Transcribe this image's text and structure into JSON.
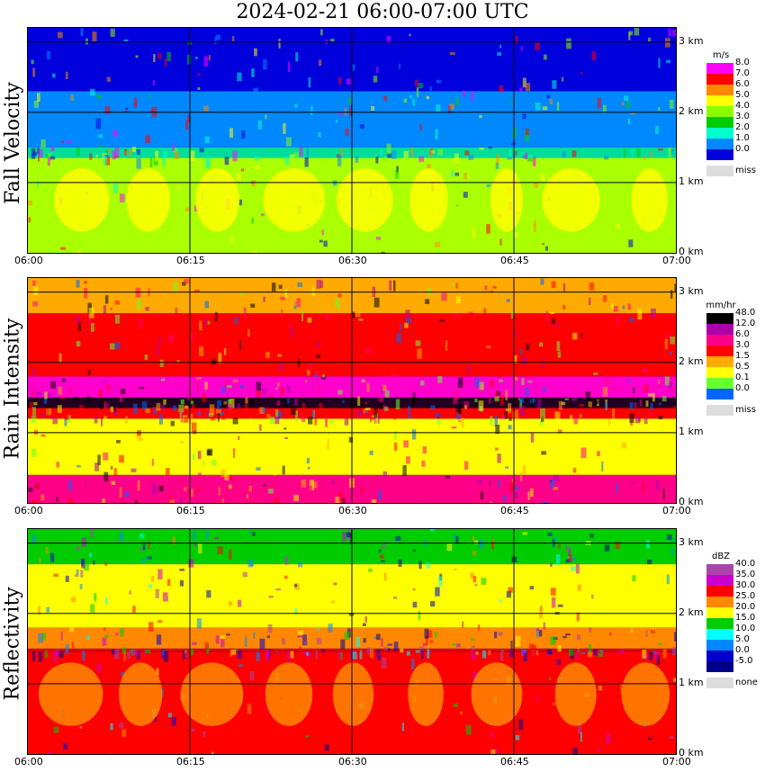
{
  "title": "2024-02-21   06:00-07:00 UTC",
  "time_labels": [
    "06:00",
    "06:15",
    "06:30",
    "06:45",
    "07:00"
  ],
  "height_labels": [
    "3 km",
    "2 km",
    "1 km",
    "0 km"
  ],
  "chart_data": [
    {
      "type": "heatmap",
      "name": "Fall Velocity",
      "ylabel": "Fall Velocity",
      "x_range": [
        "06:00",
        "07:00"
      ],
      "y_range_km": [
        0,
        3.2
      ],
      "legend_unit": "m/s",
      "legend": [
        {
          "label": "8.0",
          "color": "#ff00ff"
        },
        {
          "label": "7.0",
          "color": "#ff0000"
        },
        {
          "label": "6.0",
          "color": "#ff8800"
        },
        {
          "label": "5.0",
          "color": "#ffff00"
        },
        {
          "label": "4.0",
          "color": "#88ff00"
        },
        {
          "label": "3.0",
          "color": "#00cc00"
        },
        {
          "label": "2.0",
          "color": "#00ffcc"
        },
        {
          "label": "1.0",
          "color": "#0088ff"
        },
        {
          "label": "0.0",
          "color": "#0000dd"
        },
        {
          "label": "miss",
          "color": "#dddddd"
        }
      ],
      "layers": [
        {
          "from_km": 0.0,
          "to_km": 1.35,
          "color": "#aaff00"
        },
        {
          "from_km": 1.35,
          "to_km": 1.5,
          "color": "#00dd99"
        },
        {
          "from_km": 1.5,
          "to_km": 2.3,
          "color": "#0088ff"
        },
        {
          "from_km": 2.3,
          "to_km": 3.2,
          "color": "#0000dd"
        }
      ],
      "highlights": [
        {
          "from_km": 0.3,
          "to_km": 1.2,
          "color": "#ffff00"
        }
      ]
    },
    {
      "type": "heatmap",
      "name": "Rain Intensity",
      "ylabel": "Rain Intensity",
      "x_range": [
        "06:00",
        "07:00"
      ],
      "y_range_km": [
        0,
        3.2
      ],
      "legend_unit": "mm/hr",
      "legend": [
        {
          "label": "48.0",
          "color": "#000000"
        },
        {
          "label": "12.0",
          "color": "#aa00aa"
        },
        {
          "label": "6.0",
          "color": "#ff0088"
        },
        {
          "label": "3.0",
          "color": "#ff0000"
        },
        {
          "label": "1.5",
          "color": "#ffaa00"
        },
        {
          "label": "0.5",
          "color": "#ffff00"
        },
        {
          "label": "0.1",
          "color": "#66ff33"
        },
        {
          "label": "0.0",
          "color": "#0066ff"
        },
        {
          "label": "miss",
          "color": "#dddddd"
        }
      ],
      "layers": [
        {
          "from_km": 0.0,
          "to_km": 0.4,
          "color": "#ff0088"
        },
        {
          "from_km": 0.4,
          "to_km": 1.2,
          "color": "#ffff00"
        },
        {
          "from_km": 1.2,
          "to_km": 1.35,
          "color": "#ff0000"
        },
        {
          "from_km": 1.35,
          "to_km": 1.5,
          "color": "#220022"
        },
        {
          "from_km": 1.5,
          "to_km": 1.8,
          "color": "#ff00cc"
        },
        {
          "from_km": 1.8,
          "to_km": 2.7,
          "color": "#ff0000"
        },
        {
          "from_km": 2.7,
          "to_km": 3.2,
          "color": "#ffaa00"
        }
      ],
      "highlights": []
    },
    {
      "type": "heatmap",
      "name": "Reflectivity",
      "ylabel": "Reflectivity",
      "x_range": [
        "06:00",
        "07:00"
      ],
      "y_range_km": [
        0,
        3.2
      ],
      "legend_unit": "dBZ",
      "legend": [
        {
          "label": "40.0",
          "color": "#aa44aa"
        },
        {
          "label": "35.0",
          "color": "#cc00cc"
        },
        {
          "label": "30.0",
          "color": "#ff0000"
        },
        {
          "label": "25.0",
          "color": "#ff8800"
        },
        {
          "label": "20.0",
          "color": "#ffff00"
        },
        {
          "label": "15.0",
          "color": "#00cc00"
        },
        {
          "label": "10.0",
          "color": "#00ffff"
        },
        {
          "label": "5.0",
          "color": "#0088ff"
        },
        {
          "label": "0.0",
          "color": "#0000cc"
        },
        {
          "label": "-5.0",
          "color": "#000088"
        },
        {
          "label": "none",
          "color": "#dddddd"
        }
      ],
      "layers": [
        {
          "from_km": 0.0,
          "to_km": 1.45,
          "color": "#ff0000"
        },
        {
          "from_km": 1.45,
          "to_km": 1.5,
          "color": "#dd0000"
        },
        {
          "from_km": 1.5,
          "to_km": 1.8,
          "color": "#ff8800"
        },
        {
          "from_km": 1.8,
          "to_km": 2.7,
          "color": "#ffff00"
        },
        {
          "from_km": 2.7,
          "to_km": 3.2,
          "color": "#00cc00"
        }
      ],
      "highlights": [
        {
          "from_km": 0.4,
          "to_km": 1.3,
          "color": "#ff8800"
        }
      ]
    }
  ]
}
